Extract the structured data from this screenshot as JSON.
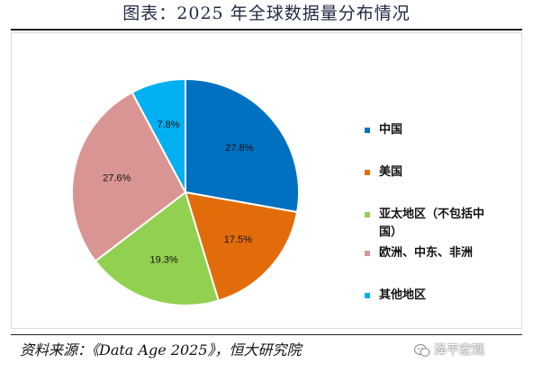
{
  "header": {
    "title": "图表：2025 年全球数据量分布情况"
  },
  "chart_data": {
    "type": "pie",
    "title": "",
    "categories": [
      "中国",
      "美国",
      "亚太地区（不包括中国）",
      "欧洲、中东、非洲",
      "其他地区"
    ],
    "legend_lines": [
      [
        "中国"
      ],
      [
        "美国"
      ],
      [
        "亚太地区（不包括中",
        "国）"
      ],
      [
        "欧洲、中东、非洲"
      ],
      [
        "其他地区"
      ]
    ],
    "values": [
      27.8,
      17.5,
      19.3,
      27.6,
      7.8
    ],
    "labels": [
      "27.8%",
      "17.5%",
      "19.3%",
      "27.6%",
      "7.8%"
    ],
    "colors": [
      "#0070C0",
      "#E36C0A",
      "#92D050",
      "#D99594",
      "#00B0F0"
    ],
    "start_angle_deg": 0,
    "direction": "clockwise",
    "legend_position": "right"
  },
  "footer": {
    "source": "资料来源：《Data Age 2025》，恒大研究院",
    "watermark": "泽平宏观",
    "watermark_icon": "wechat-icon"
  }
}
